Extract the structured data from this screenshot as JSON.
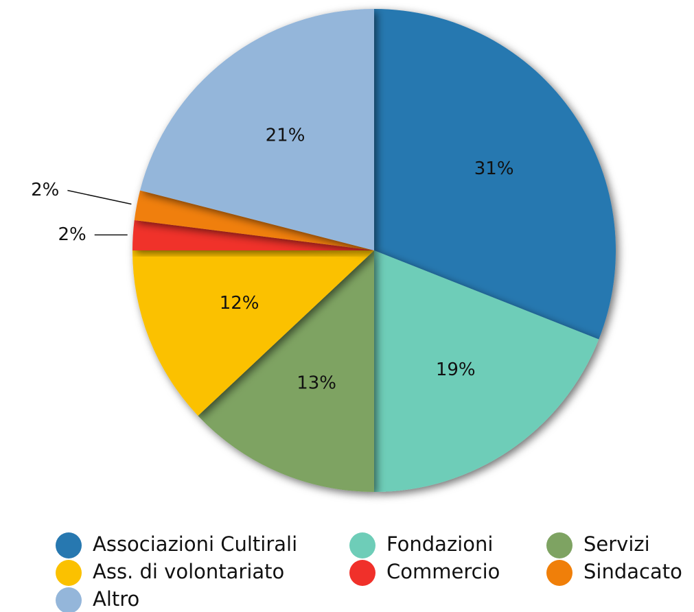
{
  "chart_data": {
    "type": "pie",
    "categories": [
      "Associazioni Cultirali",
      "Fondazioni",
      "Servizi",
      "Ass. di volontariato",
      "Commercio",
      "Sindacato",
      "Altro"
    ],
    "values": [
      31,
      19,
      13,
      12,
      2,
      2,
      21
    ],
    "value_labels": [
      "31%",
      "19%",
      "13%",
      "12%",
      "2%",
      "2%",
      "21%"
    ],
    "colors": [
      "#2778b0",
      "#6ecdb8",
      "#7ea362",
      "#fbc100",
      "#f0302a",
      "#f07f09",
      "#94b6da"
    ],
    "legend": "bottom"
  }
}
